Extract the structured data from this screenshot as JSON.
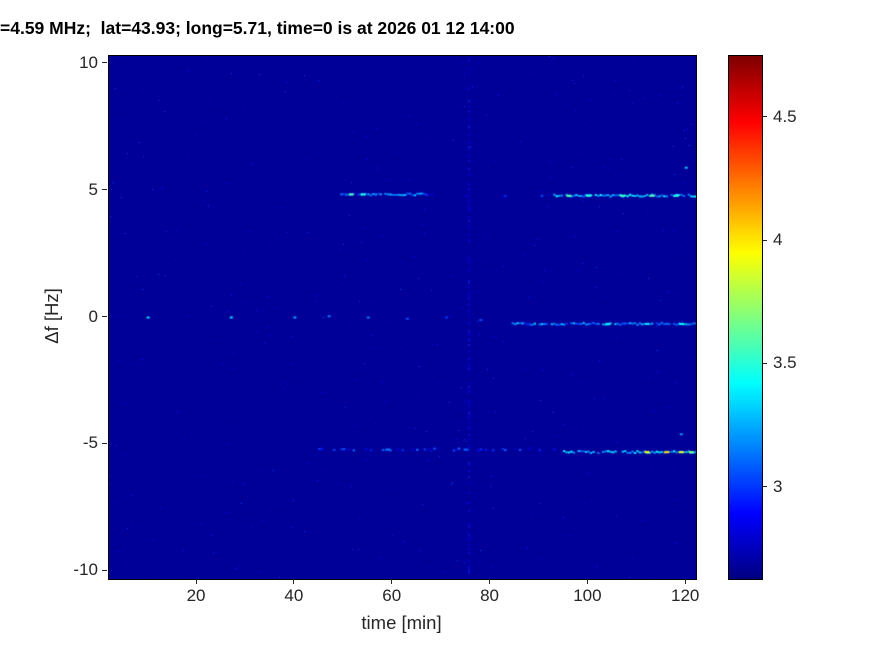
{
  "chart_data": {
    "type": "heatmap",
    "title": "=4.59 MHz;  lat=43.93; long=5.71, time=0 is at 2026 01 12 14:00",
    "xlabel": "time [min]",
    "ylabel": "Δf [Hz]",
    "xlim": [
      2,
      122
    ],
    "ylim": [
      -10.3,
      10.3
    ],
    "xticks": [
      20,
      40,
      60,
      80,
      100,
      120
    ],
    "yticks": [
      10,
      5,
      0,
      -5,
      -10
    ],
    "grid": false,
    "colorbar": {
      "colormap": "jet",
      "vmin": 2.63,
      "vmax": 4.75,
      "ticks": [
        4.5,
        4,
        3.5,
        3
      ],
      "position": "right"
    },
    "heatmap": {
      "background_value": 2.68,
      "noise": {
        "seed": 7,
        "count": 1600,
        "value_min": 2.66,
        "value_max": 3.05,
        "skew": 3
      },
      "streaks": [
        {
          "df": 4.85,
          "t_start": 49,
          "t_end": 67,
          "base_value": 3.15,
          "density": 0.85,
          "peaks": [
            {
              "t": 51.5,
              "value": 3.6
            },
            {
              "t": 54,
              "value": 3.5
            }
          ]
        },
        {
          "df": 4.8,
          "t_start": 68,
          "t_end": 92,
          "base_value": 2.95,
          "density": 0.15,
          "peaks": []
        },
        {
          "df": 4.8,
          "t_start": 93,
          "t_end": 122,
          "base_value": 3.25,
          "density": 0.9,
          "peaks": [
            {
              "t": 96,
              "value": 3.6
            },
            {
              "t": 100,
              "value": 3.5
            },
            {
              "t": 107,
              "value": 3.55
            },
            {
              "t": 113,
              "value": 3.6
            },
            {
              "t": 118,
              "value": 3.5
            }
          ]
        },
        {
          "df": -0.25,
          "t_start": 84,
          "t_end": 122,
          "base_value": 3.15,
          "density": 0.8,
          "peaks": [
            {
              "t": 104,
              "value": 3.4
            },
            {
              "t": 112,
              "value": 3.35
            },
            {
              "t": 119,
              "value": 3.4
            }
          ]
        },
        {
          "df": -5.2,
          "t_start": 44,
          "t_end": 94,
          "base_value": 2.95,
          "density": 0.35,
          "peaks": [
            {
              "t": 59,
              "value": 3.15
            },
            {
              "t": 75,
              "value": 3.1
            }
          ]
        },
        {
          "df": -5.3,
          "t_start": 95,
          "t_end": 122,
          "base_value": 3.25,
          "density": 0.9,
          "peaks": [
            {
              "t": 112,
              "value": 3.95
            },
            {
              "t": 116,
              "value": 4.05
            },
            {
              "t": 119,
              "value": 3.9
            },
            {
              "t": 121,
              "value": 3.7
            }
          ]
        }
      ],
      "dots": [
        {
          "t": 10,
          "df": 0.0,
          "value": 3.35
        },
        {
          "t": 27,
          "df": 0.0,
          "value": 3.35
        },
        {
          "t": 40,
          "df": 0.0,
          "value": 3.25
        },
        {
          "t": 47,
          "df": 0.05,
          "value": 3.15
        },
        {
          "t": 55,
          "df": 0.0,
          "value": 3.15
        },
        {
          "t": 63,
          "df": -0.05,
          "value": 3.05
        },
        {
          "t": 71,
          "df": 0.0,
          "value": 3.0
        },
        {
          "t": 78,
          "df": -0.1,
          "value": 3.05
        },
        {
          "t": 120,
          "df": 5.9,
          "value": 3.3
        },
        {
          "t": 119,
          "df": -4.6,
          "value": 3.2
        }
      ],
      "vertical_line": {
        "t": 75.5,
        "value_min": 2.7,
        "value_max": 3.0
      }
    }
  }
}
